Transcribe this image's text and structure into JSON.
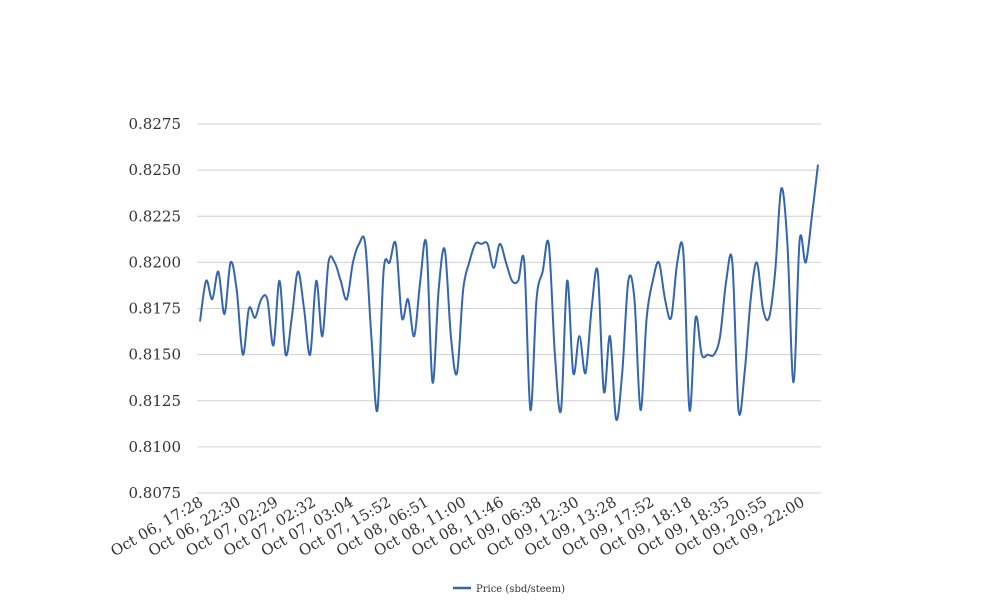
{
  "chart_data": {
    "type": "line",
    "title": "",
    "xlabel": "",
    "ylabel": "",
    "ylim": [
      0.8075,
      0.8275
    ],
    "yticks": [
      "0.8275",
      "0.8250",
      "0.8225",
      "0.8200",
      "0.8175",
      "0.8150",
      "0.8125",
      "0.8100",
      "0.8075"
    ],
    "ytick_values": [
      0.8275,
      0.825,
      0.8225,
      0.82,
      0.8175,
      0.815,
      0.8125,
      0.81,
      0.8075
    ],
    "xticks": [
      "Oct 06, 17:28",
      "Oct 06, 22:30",
      "Oct 07, 02:29",
      "Oct 07, 02:32",
      "Oct 07, 03:04",
      "Oct 07, 15:52",
      "Oct 08, 06:51",
      "Oct 08, 11:00",
      "Oct 08, 11:46",
      "Oct 09, 06:38",
      "Oct 09, 12:30",
      "Oct 09, 13:28",
      "Oct 09, 17:52",
      "Oct 09, 18:18",
      "Oct 09, 18:35",
      "Oct 09, 20:55",
      "Oct 09, 22:00"
    ],
    "grid": true,
    "legend_position": "bottom-center",
    "series": [
      {
        "name": "Price (sbd/steem)",
        "color": "#3465b0",
        "values": [
          0.8168,
          0.819,
          0.818,
          0.8195,
          0.8172,
          0.82,
          0.8185,
          0.815,
          0.8175,
          0.817,
          0.818,
          0.818,
          0.8155,
          0.819,
          0.815,
          0.817,
          0.8195,
          0.8175,
          0.815,
          0.819,
          0.816,
          0.82,
          0.82,
          0.819,
          0.818,
          0.82,
          0.821,
          0.821,
          0.816,
          0.812,
          0.8195,
          0.82,
          0.821,
          0.817,
          0.818,
          0.816,
          0.819,
          0.821,
          0.8135,
          0.8185,
          0.8207,
          0.816,
          0.814,
          0.8185,
          0.82,
          0.821,
          0.821,
          0.821,
          0.8197,
          0.821,
          0.82,
          0.819,
          0.819,
          0.82,
          0.812,
          0.818,
          0.8195,
          0.821,
          0.815,
          0.812,
          0.819,
          0.814,
          0.816,
          0.814,
          0.8175,
          0.8195,
          0.813,
          0.816,
          0.8115,
          0.814,
          0.819,
          0.818,
          0.812,
          0.817,
          0.819,
          0.82,
          0.818,
          0.817,
          0.82,
          0.8205,
          0.812,
          0.817,
          0.815,
          0.815,
          0.815,
          0.816,
          0.819,
          0.82,
          0.812,
          0.814,
          0.818,
          0.82,
          0.8175,
          0.817,
          0.8195,
          0.824,
          0.821,
          0.8135,
          0.8212,
          0.82,
          0.8225,
          0.8253
        ]
      }
    ]
  }
}
